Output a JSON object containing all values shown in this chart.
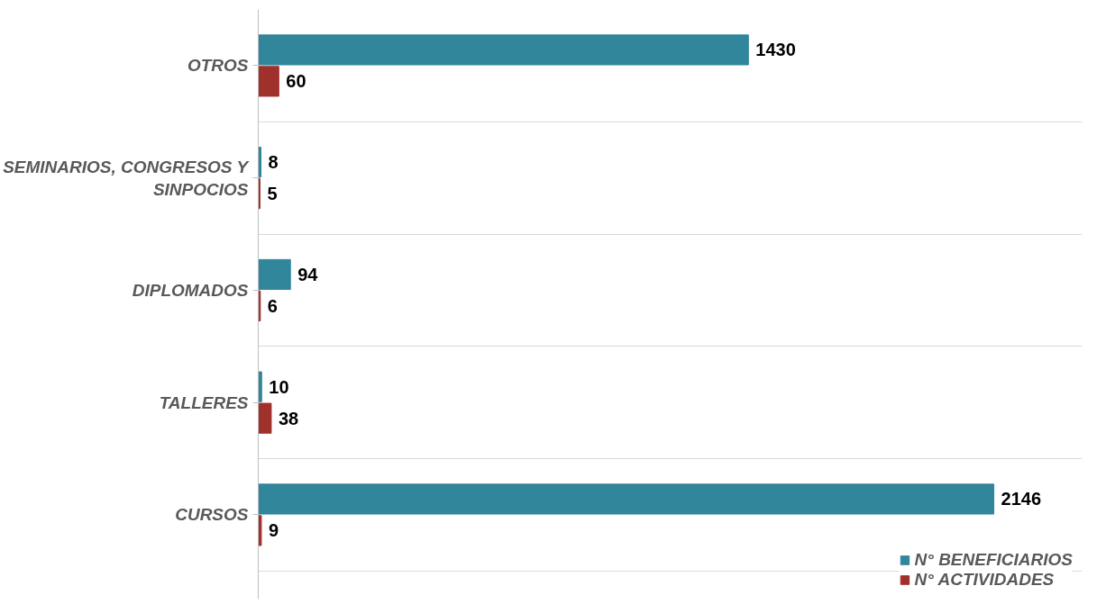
{
  "chart_data": {
    "type": "bar",
    "orientation": "horizontal",
    "categories": [
      "OTROS",
      "SEMINARIOS, CONGRESOS Y SINPOCIOS",
      "DIPLOMADOS",
      "TALLERES",
      "CURSOS"
    ],
    "series": [
      {
        "name": "N° BENEFICIARIOS",
        "color": "#31869b",
        "values": [
          1430,
          8,
          94,
          10,
          2146
        ]
      },
      {
        "name": "N° ACTIVIDADES",
        "color": "#a0302c",
        "values": [
          60,
          5,
          6,
          38,
          9
        ]
      }
    ],
    "data_labels": true,
    "grid": "y",
    "legend": "bottom right",
    "tick_labels": "y"
  }
}
